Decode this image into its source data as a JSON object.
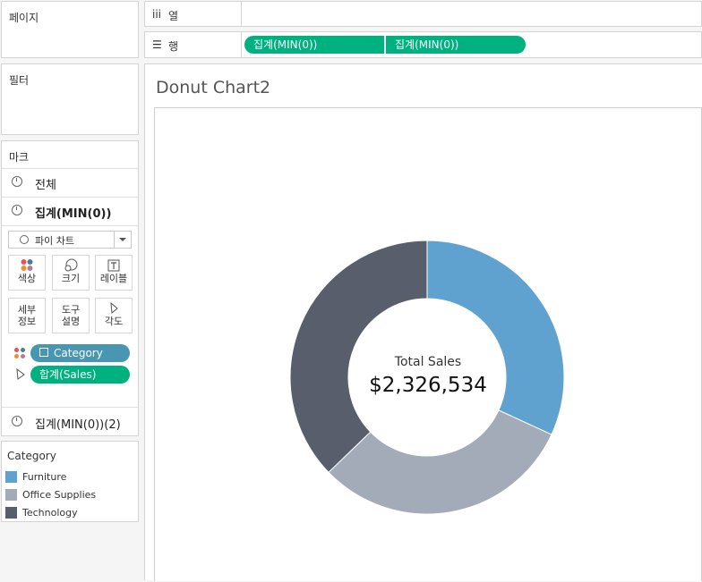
{
  "pages": {
    "title": "페이지"
  },
  "filters": {
    "title": "필터"
  },
  "shelves": {
    "columns": {
      "icon": "iii",
      "label": "열",
      "pills": []
    },
    "rows": {
      "icon": "☰",
      "label": "행",
      "pills": [
        "집계(MIN(0))",
        "집계(MIN(0))"
      ]
    }
  },
  "marks": {
    "title": "마크",
    "all": "전체",
    "agg1": "집계(MIN(0))",
    "mark_type": "파이 차트",
    "buttons": {
      "color": "색상",
      "size": "크기",
      "label": "레이블",
      "detail_1": "세부",
      "detail_2": "정보",
      "tooltip_1": "도구",
      "tooltip_2": "설명",
      "angle": "각도"
    },
    "pills": {
      "color_field": "Category",
      "angle_field": "합계(Sales)"
    },
    "agg2": "집계(MIN(0))(2)"
  },
  "legend": {
    "title": "Category",
    "items": [
      {
        "label": "Furniture",
        "color": "#5fa2cf"
      },
      {
        "label": "Office Supplies",
        "color": "#a2abb7"
      },
      {
        "label": "Technology",
        "color": "#585e6b"
      }
    ]
  },
  "view": {
    "title": "Donut Chart2",
    "center_label": "Total Sales",
    "center_value": "$2,326,534"
  },
  "chart_data": {
    "type": "pie",
    "title": "Donut Chart2",
    "categories": [
      "Furniture",
      "Office Supplies",
      "Technology"
    ],
    "values": [
      741718,
      718735,
      866081
    ],
    "total": 2326534,
    "colors": [
      "#5fa2cf",
      "#a2abb7",
      "#585e6b"
    ],
    "donut": true,
    "center_text": [
      "Total Sales",
      "$2,326,534"
    ]
  }
}
